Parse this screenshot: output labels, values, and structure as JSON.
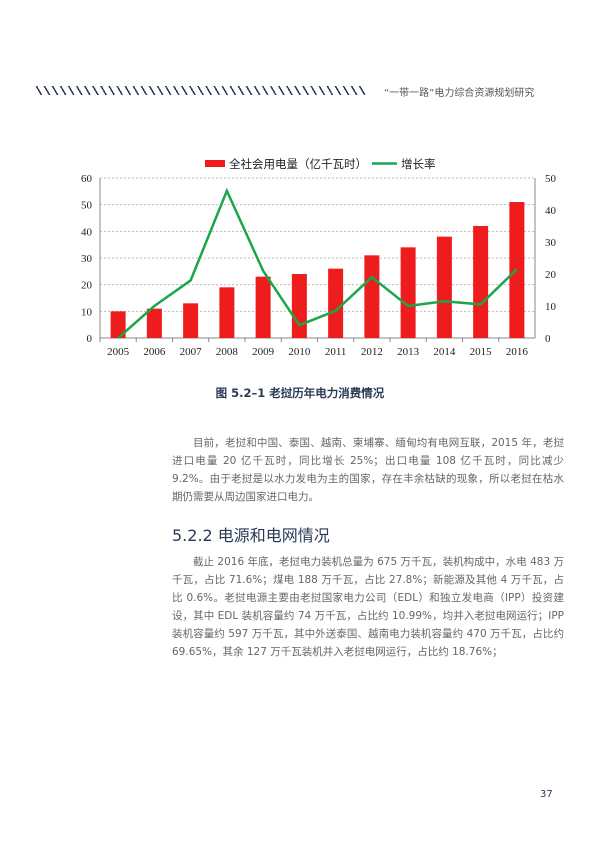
{
  "header": {
    "running_title": "“一带一路”电力综合资源规划研究"
  },
  "chart_data": {
    "type": "bar+line",
    "categories": [
      "2005",
      "2006",
      "2007",
      "2008",
      "2009",
      "2010",
      "2011",
      "2012",
      "2013",
      "2014",
      "2015",
      "2016"
    ],
    "series": [
      {
        "name": "全社会用电量（亿千瓦时）",
        "type": "bar",
        "axis": "left",
        "color": "#ee1c1c",
        "values": [
          10,
          11,
          13,
          19,
          23,
          24,
          26,
          31,
          34,
          38,
          42,
          51
        ]
      },
      {
        "name": "增长率",
        "type": "line",
        "axis": "right",
        "color": "#1aa64a",
        "values": [
          0,
          10,
          18,
          46,
          21,
          4,
          8.5,
          19,
          10,
          11.5,
          10.5,
          21.5
        ]
      }
    ],
    "left_ylim": [
      0,
      60
    ],
    "left_ticks": [
      "0",
      "10",
      "20",
      "30",
      "40",
      "50",
      "60"
    ],
    "right_ylim": [
      0,
      50
    ],
    "right_ticks": [
      "0",
      "10",
      "20",
      "30",
      "40",
      "50"
    ],
    "grid": true,
    "legend": "top"
  },
  "figure": {
    "caption": "图 5.2–1  老挝历年电力消费情况"
  },
  "body": {
    "para1": "目前，老挝和中国、泰国、越南、柬埔寨、缅甸均有电网互联，2015 年，老挝进口电量 20 亿千瓦时，同比增长 25%；出口电量 108 亿千瓦时，同比减少 9.2%。由于老挝是以水力发电为主的国家，存在丰余枯缺的现象，所以老挝在枯水期仍需要从周边国家进口电力。",
    "heading": "5.2.2 电源和电网情况",
    "para2": "截止 2016 年底，老挝电力装机总量为 675 万千瓦，装机构成中，水电 483 万千瓦，占比 71.6%；煤电 188 万千瓦，占比 27.8%；新能源及其他 4 万千瓦，占比 0.6%。老挝电源主要由老挝国家电力公司（EDL）和独立发电商（IPP）投资建设，其中 EDL 装机容量约 74 万千瓦，占比约 10.99%，均并入老挝电网运行；IPP 装机容量约 597 万千瓦，其中外送泰国、越南电力装机容量约 470 万千瓦，占比约 69.65%，其余 127 万千瓦装机并入老挝电网运行，占比约 18.76%；"
  },
  "footer": {
    "page_number": "37"
  }
}
